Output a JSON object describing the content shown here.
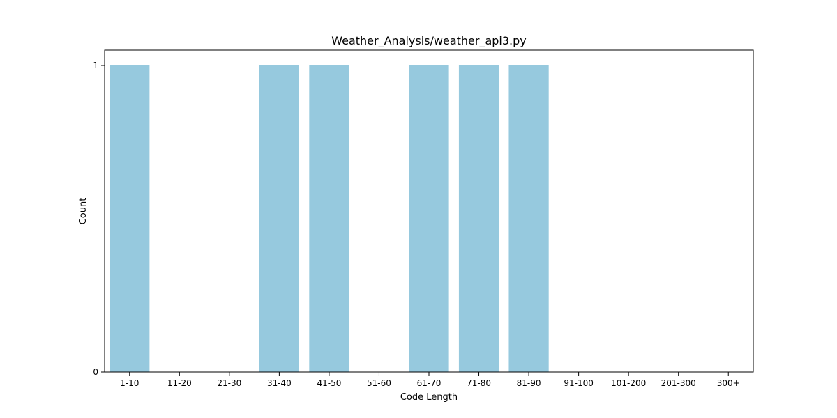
{
  "chart_data": {
    "type": "bar",
    "title": "Weather_Analysis/weather_api3.py",
    "xlabel": "Code Length",
    "ylabel": "Count",
    "categories": [
      "1-10",
      "11-20",
      "21-30",
      "31-40",
      "41-50",
      "51-60",
      "61-70",
      "71-80",
      "81-90",
      "91-100",
      "101-200",
      "201-300",
      "300+"
    ],
    "values": [
      1,
      0,
      0,
      1,
      1,
      0,
      1,
      1,
      1,
      0,
      0,
      0,
      0
    ],
    "ylim": [
      0,
      1.05
    ],
    "yticks": [
      0,
      1
    ],
    "bar_color": "#96c9de",
    "grid": false
  }
}
